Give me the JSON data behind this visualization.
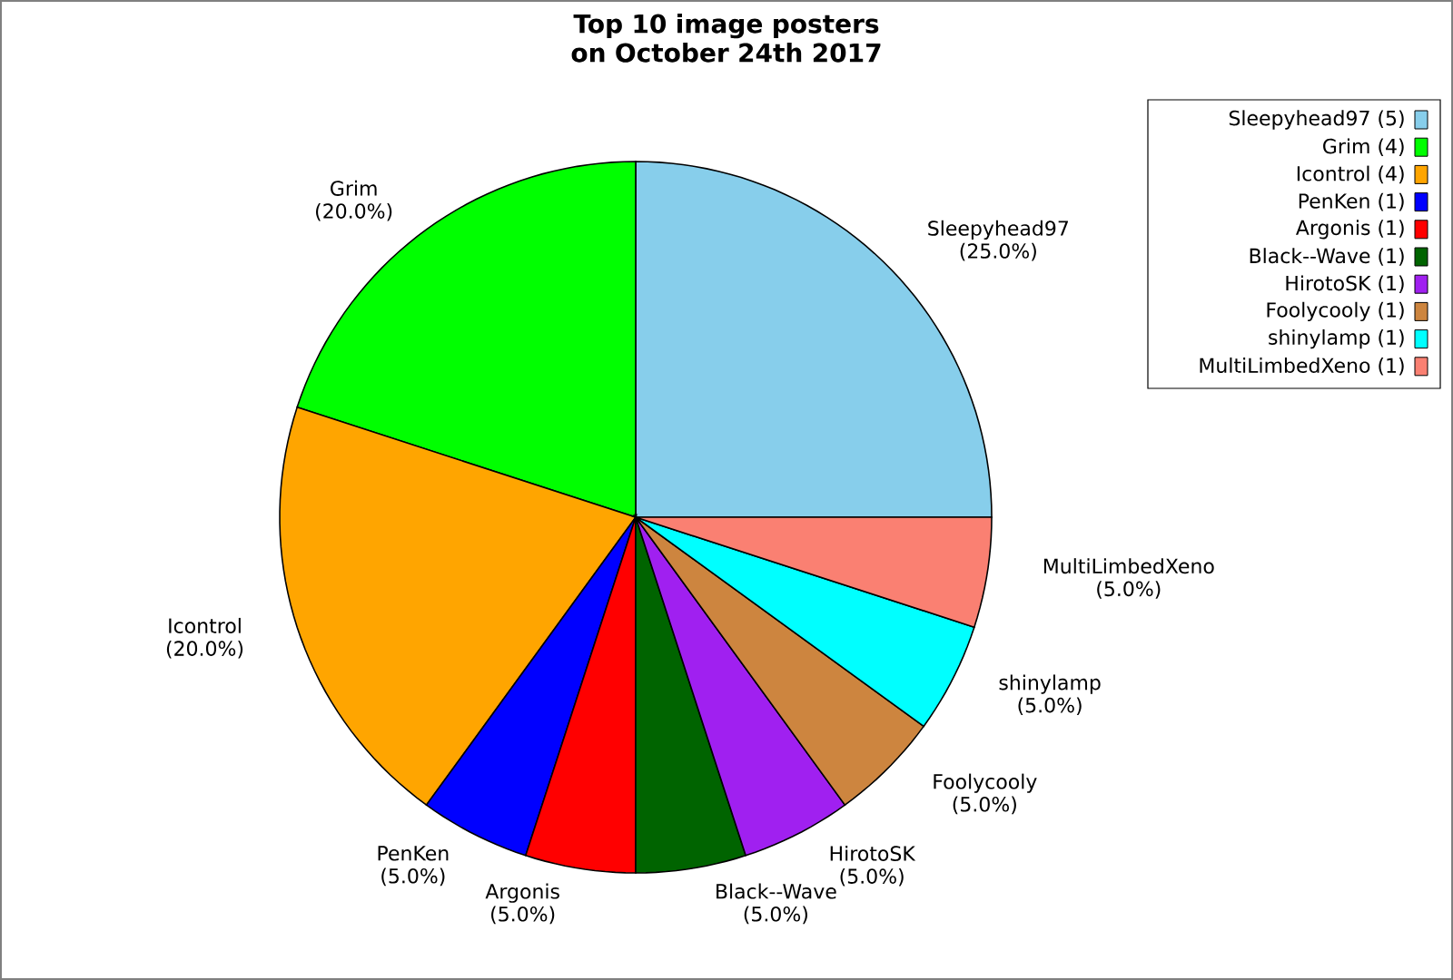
{
  "chart_data": {
    "type": "pie",
    "title": "Top 10 image posters on October 24th 2017",
    "categories": [
      "Sleepyhead97 (5)",
      "Grim (4)",
      "Icontrol (4)",
      "PenKen (1)",
      "Argonis (1)",
      "Black--Wave (1)",
      "HirotoSK (1)",
      "Foolycooly (1)",
      "shinylamp (1)",
      "MultiLimbedXeno (1)"
    ],
    "values": [
      25,
      20,
      20,
      5,
      5,
      5,
      5,
      5,
      5,
      5
    ],
    "value_labels": [
      "Sleepyhead97 (25.0%)",
      "Grim (20.0%)",
      "Icontrol (20.0%)",
      "PenKen (5.0%)",
      "Argonis (5.0%)",
      "Black--Wave (5.0%)",
      "HirotoSK (5.0%)",
      "Foolycooly (5.0%)",
      "shinylamp (5.0%)",
      "MultiLimbedXeno (5.0%)"
    ],
    "colors": [
      "#87ceeb",
      "#00ff00",
      "#ffa500",
      "#0000ff",
      "#ff0000",
      "#006400",
      "#a020f0",
      "#cd853f",
      "#00ffff",
      "#fa8072"
    ],
    "legend": "top right"
  }
}
